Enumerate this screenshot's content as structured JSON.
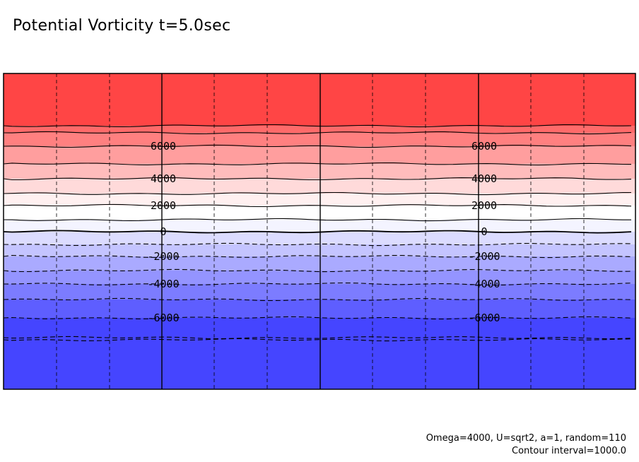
{
  "chart_data": {
    "type": "heatmap",
    "title": "Potential Vorticity t=5.0sec",
    "contour_interval": "Contour interval=1000.0",
    "parameters": "Omega=4000, U=sqrt2, a=1, random=110",
    "levels": [
      8000,
      7000,
      6000,
      5000,
      4000,
      3000,
      2000,
      1000,
      0,
      -1000,
      -2000,
      -3000,
      -4000,
      -5000,
      -6000,
      -7000,
      -8000
    ],
    "contour_labels": [
      {
        "value": 6000,
        "text": "6000"
      },
      {
        "value": 4000,
        "text": "4000"
      },
      {
        "value": 2000,
        "text": "2000"
      },
      {
        "value": 0,
        "text": "0"
      },
      {
        "value": -2000,
        "text": "-2000"
      },
      {
        "value": -4000,
        "text": "-4000"
      },
      {
        "value": -6000,
        "text": "-6000"
      }
    ],
    "colors": {
      "bands": [
        "#ff4545",
        "#ff6a6a",
        "#ff8080",
        "#ff9e9e",
        "#ffbcbc",
        "#ffdada",
        "#fff0f0",
        "#ffffff",
        "#f4f4ff",
        "#dcdcff",
        "#c4c4ff",
        "#aaaaff",
        "#9494ff",
        "#7c7cff",
        "#5e5eff",
        "#4545ff"
      ],
      "line": "#000000"
    },
    "grid": true,
    "colorscale": "red-white-blue"
  }
}
